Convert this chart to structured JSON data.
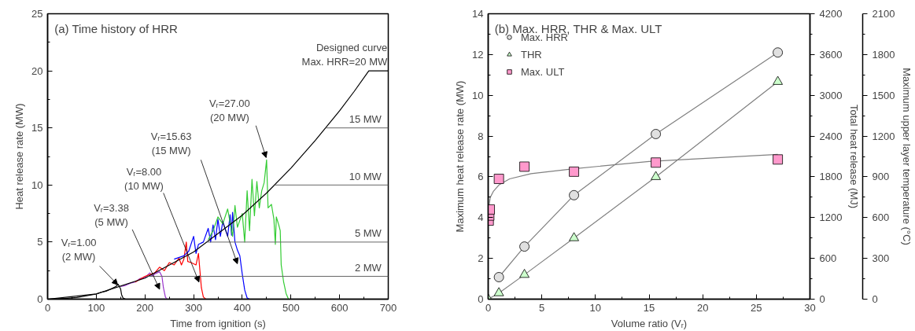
{
  "chart_data": [
    {
      "type": "line",
      "title": "(a) Time history of HRR",
      "xlabel": "Time from ignition (s)",
      "ylabel": "Heat release rate (MW)",
      "xlim": [
        0,
        700
      ],
      "xticks": [
        0,
        100,
        200,
        300,
        400,
        500,
        600,
        700
      ],
      "ylim": [
        0,
        25
      ],
      "yticks": [
        0,
        5,
        10,
        15,
        20,
        25
      ],
      "grid": false,
      "series": [
        {
          "color": "#000000",
          "x": [
            0,
            20,
            40,
            60,
            80,
            100,
            110,
            120,
            130,
            140,
            145,
            150,
            152,
            155,
            160
          ],
          "values": [
            0,
            0.02,
            0.08,
            0.15,
            0.3,
            0.45,
            0.6,
            0.7,
            0.9,
            1.1,
            1.3,
            0.9,
            0.4,
            0.1,
            0
          ]
        },
        {
          "color": "#9933cc",
          "x": [
            150,
            160,
            170,
            180,
            190,
            200,
            210,
            215,
            220,
            230,
            235,
            238,
            242,
            245
          ],
          "values": [
            1.1,
            1.2,
            1.4,
            1.5,
            1.8,
            1.9,
            2.3,
            2.0,
            2.2,
            2.4,
            2.0,
            1.0,
            0.2,
            0
          ]
        },
        {
          "color": "#ff0000",
          "x": [
            180,
            200,
            220,
            230,
            240,
            250,
            260,
            270,
            275,
            280,
            285,
            288,
            295,
            305,
            310,
            313,
            316,
            320,
            325
          ],
          "values": [
            1.5,
            2.0,
            2.3,
            2.8,
            2.5,
            3.2,
            3.0,
            3.6,
            3.0,
            3.5,
            5.0,
            3.3,
            3.2,
            3.0,
            4.0,
            2.5,
            1.0,
            0.2,
            0
          ]
        },
        {
          "color": "#0000ff",
          "x": [
            260,
            280,
            290,
            300,
            305,
            310,
            320,
            330,
            335,
            340,
            345,
            350,
            355,
            360,
            370,
            375,
            378,
            380,
            385,
            390,
            395,
            400,
            405,
            410,
            415
          ],
          "values": [
            3.5,
            3.8,
            4.2,
            5.5,
            4.0,
            4.8,
            5.0,
            6.2,
            5.0,
            6.5,
            5.2,
            7.0,
            5.5,
            6.8,
            5.5,
            7.4,
            5.6,
            7.6,
            5.0,
            4.3,
            3.8,
            2.2,
            0.8,
            0.1,
            0
          ]
        },
        {
          "color": "#33cc33",
          "x": [
            330,
            340,
            350,
            360,
            370,
            380,
            385,
            390,
            400,
            405,
            410,
            415,
            420,
            425,
            430,
            435,
            440,
            445,
            450,
            453,
            460,
            465,
            468,
            470,
            475,
            478,
            480,
            485,
            490,
            495
          ],
          "values": [
            5.2,
            6.0,
            7.2,
            6.6,
            7.9,
            5.5,
            8.2,
            6.3,
            7.5,
            5.0,
            9.5,
            6.0,
            10.5,
            7.3,
            10.3,
            8.0,
            9.5,
            10.2,
            12.2,
            8.0,
            8.3,
            7.0,
            4.8,
            7.2,
            6.5,
            6.0,
            3.0,
            1.5,
            0.5,
            0
          ]
        },
        {
          "color": "#000000",
          "x": [
            0,
            100,
            200,
            300,
            400,
            450,
            500,
            550,
            600,
            630,
            660,
            700
          ],
          "values": [
            0,
            0.46,
            1.84,
            4.13,
            7.35,
            9.3,
            11.48,
            13.9,
            16.5,
            18.2,
            20,
            20
          ]
        }
      ],
      "ref_lines": [
        {
          "axis": "y",
          "value": 2,
          "label": "2 MW"
        },
        {
          "axis": "y",
          "value": 5,
          "label": "5 MW"
        },
        {
          "axis": "y",
          "value": 10,
          "label": "10 MW"
        },
        {
          "axis": "y",
          "value": 15,
          "label": "15 MW"
        }
      ],
      "annotations": [
        {
          "text": "Vᵣ=1.00\n(2 MW)",
          "x": 144,
          "y": 1.26
        },
        {
          "text": "Vᵣ=3.38\n(5 MW)",
          "x": 230,
          "y": 0.87
        },
        {
          "text": "Vᵣ=8.00\n(10 MW)",
          "x": 311,
          "y": 1.5
        },
        {
          "text": "Vᵣ=15.63\n(15 MW)",
          "x": 390,
          "y": 3.1
        },
        {
          "text": "Vᵣ=27.00\n(20 MW)",
          "x": 449,
          "y": 12.4
        },
        {
          "text": "Designed curve\nMax. HRR=20 MW",
          "x": 660,
          "y": 20
        }
      ]
    },
    {
      "type": "scatter",
      "title": "(b) Max. HRR, THR & Max. ULT",
      "xlabel": "Volume ratio (Vᵣ)",
      "ylabel": "Maximum heat release rate (MW)",
      "y2label": "Total heat release (MJ)",
      "y3label": "Maximum upper layer temperature (°C)",
      "xlim": [
        0,
        30
      ],
      "xticks": [
        0,
        5,
        10,
        15,
        20,
        25,
        30
      ],
      "ylim": [
        0,
        14
      ],
      "yticks": [
        0,
        2,
        4,
        6,
        8,
        10,
        12,
        14
      ],
      "y2lim": [
        0,
        4200
      ],
      "y2ticks": [
        0,
        600,
        1200,
        1800,
        2400,
        3000,
        3600,
        4200
      ],
      "y3lim": [
        0,
        2100
      ],
      "y3ticks": [
        0,
        300,
        600,
        900,
        1200,
        1500,
        1800,
        2100
      ],
      "grid": false,
      "legend": "top left",
      "series": [
        {
          "type": "line",
          "color": "#808080",
          "x": [
            1.0,
            3.38,
            8.0,
            15.63,
            27.0
          ],
          "values": [
            1.08,
            2.58,
            5.1,
            8.1,
            12.1
          ]
        },
        {
          "type": "line",
          "color": "#808080",
          "axis": "y2",
          "x": [
            0,
            1.0,
            3.38,
            8.0,
            15.63,
            27.0
          ],
          "values": [
            0,
            90,
            360,
            900,
            1800,
            3200
          ]
        },
        {
          "type": "line",
          "color": "#808080",
          "axis": "y3",
          "x": [
            0.05,
            0.2,
            0.5,
            1,
            2,
            4,
            8,
            15,
            27
          ],
          "values": [
            675,
            750,
            795,
            840,
            885,
            923,
            960,
            1013,
            1065
          ]
        },
        {
          "name": "Max. HRR",
          "marker": "circle",
          "color": "#e0e0e0",
          "x": [
            1.0,
            3.38,
            8.0,
            15.63,
            27.0
          ],
          "values": [
            1.08,
            2.58,
            5.1,
            8.1,
            12.1
          ]
        },
        {
          "name": "THR",
          "marker": "triangle",
          "color": "#ccffcc",
          "axis": "y2",
          "x": [
            0,
            1.0,
            3.38,
            8.0,
            15.63,
            27.0
          ],
          "values": [
            0,
            90,
            360,
            900,
            1800,
            3200
          ]
        },
        {
          "name": "Max. ULT",
          "marker": "square",
          "color": "#ff99cc",
          "axis": "y3",
          "x": [
            0.05,
            0.1,
            0.15,
            1.0,
            3.38,
            8.0,
            15.63,
            27.0
          ],
          "values": [
            578,
            615,
            660,
            885,
            975,
            938,
            1005,
            1028
          ]
        }
      ]
    }
  ]
}
